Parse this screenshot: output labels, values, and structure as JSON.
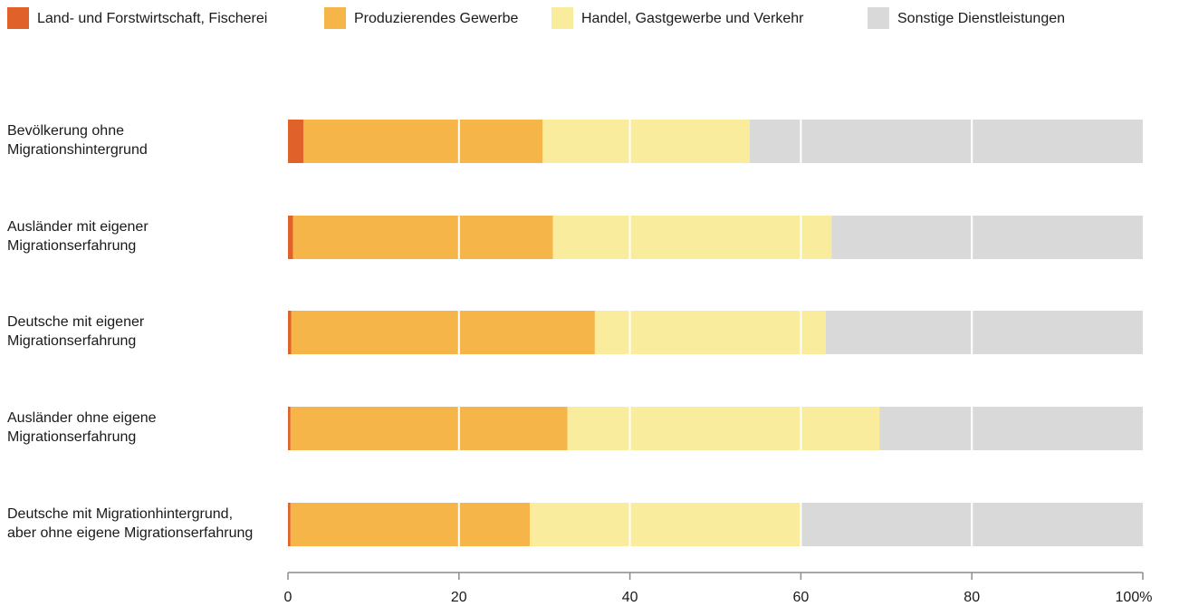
{
  "chart_data": {
    "type": "bar",
    "orientation": "horizontal",
    "stacked": true,
    "categories": [
      "Bevölkerung ohne\nMigrationshintergrund",
      "Ausländer mit eigener\nMigrationserfahrung",
      "Deutsche mit eigener\nMigrationserfahrung",
      "Ausländer ohne eigene\nMigrationserfahrung",
      "Deutsche mit Migrationhintergrund,\naber ohne eigene Migrationserfahrung"
    ],
    "series": [
      {
        "name": "Land- und Forstwirtschaft, Fischerei",
        "color": "#e0622a",
        "values": [
          1.8,
          0.6,
          0.4,
          0.3,
          0.3
        ]
      },
      {
        "name": "Produzierendes Gewerbe",
        "color": "#f6b548",
        "values": [
          28.0,
          30.4,
          35.5,
          32.4,
          28.0
        ]
      },
      {
        "name": "Handel, Gastgewerbe und Verkehr",
        "color": "#f9ec9d",
        "values": [
          24.2,
          32.6,
          27.0,
          36.5,
          31.7
        ]
      },
      {
        "name": "Sonstige Dienstleistungen",
        "color": "#d9d9d9",
        "values": [
          46.0,
          36.4,
          37.1,
          30.8,
          40.0
        ]
      }
    ],
    "xaxis": {
      "ticks": [
        "0",
        "20",
        "40",
        "60",
        "80",
        "100%"
      ],
      "tick_values": [
        0,
        20,
        40,
        60,
        80,
        100
      ],
      "range": [
        0,
        100
      ]
    },
    "legend_position": "top-left",
    "grid": "vertical white gridlines"
  }
}
